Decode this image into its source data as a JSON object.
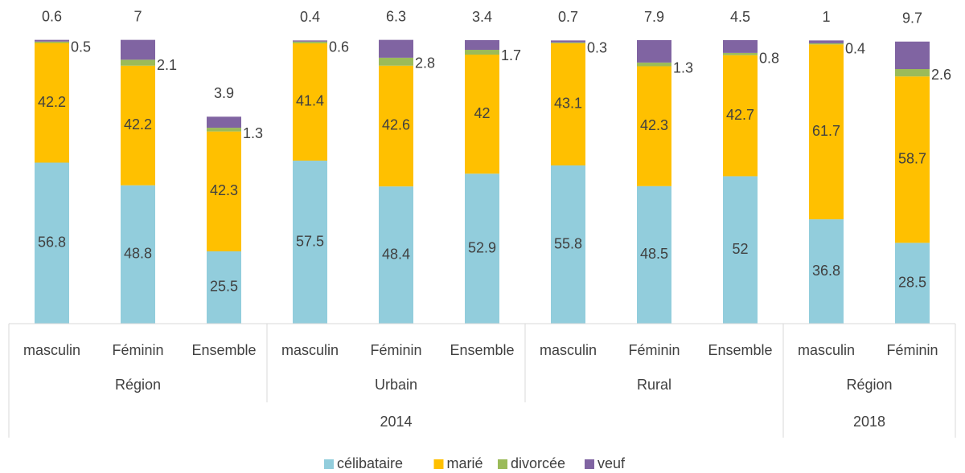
{
  "chart_data": {
    "type": "stacked_bar",
    "years": [
      {
        "label": "2014",
        "groups": [
          {
            "label": "Région",
            "categories": [
              "masculin",
              "Féminin",
              "Ensemble"
            ]
          },
          {
            "label": "Urbain",
            "categories": [
              "masculin",
              "Féminin",
              "Ensemble"
            ]
          },
          {
            "label": "Rural",
            "categories": [
              "masculin",
              "Féminin",
              "Ensemble"
            ]
          }
        ]
      },
      {
        "label": "2018",
        "groups": [
          {
            "label": "Région",
            "categories": [
              "masculin",
              "Féminin"
            ]
          }
        ]
      }
    ],
    "series": [
      {
        "name": "célibataire",
        "color": "#92cddc",
        "values": [
          56.8,
          48.8,
          25.5,
          57.5,
          48.4,
          52.9,
          55.8,
          48.5,
          52,
          36.8,
          28.5
        ]
      },
      {
        "name": "marié",
        "color": "#ffc000",
        "values": [
          42.2,
          42.2,
          42.3,
          41.4,
          42.6,
          42,
          43.1,
          42.3,
          42.7,
          61.7,
          58.7
        ]
      },
      {
        "name": "divorcée",
        "color": "#9bbb59",
        "values": [
          0.5,
          2.1,
          1.3,
          0.6,
          2.8,
          1.7,
          0.3,
          1.3,
          0.8,
          0.4,
          2.6
        ]
      },
      {
        "name": "veuf",
        "color": "#8064a2",
        "values": [
          0.6,
          7,
          3.9,
          0.4,
          6.3,
          3.4,
          0.7,
          7.9,
          4.5,
          1,
          9.7
        ]
      }
    ],
    "ylim": [
      0,
      100
    ],
    "legend": "bottom"
  }
}
